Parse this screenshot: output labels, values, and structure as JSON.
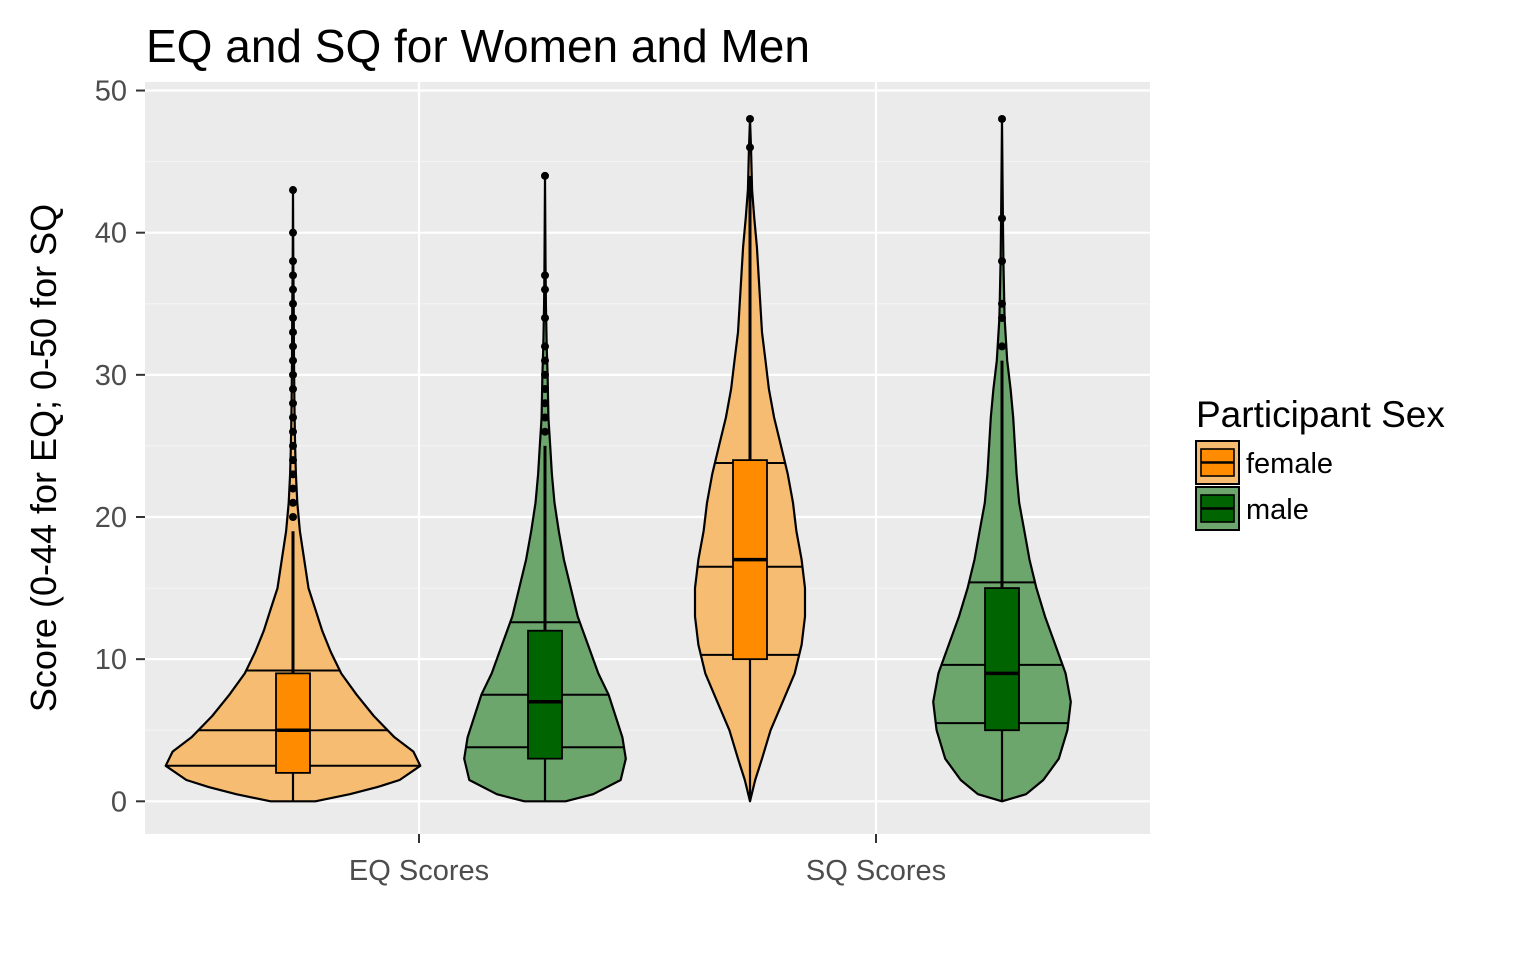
{
  "chart_data": {
    "type": "violin",
    "title": "EQ and SQ for Women and Men",
    "xlabel": "",
    "ylabel": "Score (0-44 for EQ; 0-50 for SQ",
    "ylim": [
      -2.3,
      50.6
    ],
    "yticks": [
      0,
      10,
      20,
      30,
      40,
      50
    ],
    "grid": true,
    "categories": [
      "EQ Scores",
      "SQ Scores"
    ],
    "legend": {
      "title": "Participant Sex",
      "position": "right",
      "items": [
        {
          "label": "female",
          "fill": "#ff8c00"
        },
        {
          "label": "male",
          "fill": "#006400"
        }
      ]
    },
    "series": [
      {
        "name": "female",
        "violin_fill": "#f6bc72",
        "box_fill": "#ff8c00",
        "groups": [
          {
            "category": "EQ Scores",
            "box": {
              "min": 0,
              "q1": 2,
              "median": 5,
              "q3": 9,
              "whisker_high": 19
            },
            "violin_quantiles": [
              2.5,
              5,
              9.2
            ],
            "outliers": [
              20,
              21,
              22,
              23,
              24,
              25,
              26,
              27,
              28,
              29,
              30,
              31,
              32,
              33,
              34,
              35,
              36,
              37,
              38,
              40,
              43
            ],
            "density": [
              [
                0,
                0.13
              ],
              [
                0.5,
                0.33
              ],
              [
                1,
                0.49
              ],
              [
                1.5,
                0.62
              ],
              [
                2.5,
                0.74
              ],
              [
                3.5,
                0.7
              ],
              [
                4.5,
                0.59
              ],
              [
                6,
                0.47
              ],
              [
                7.5,
                0.37
              ],
              [
                9,
                0.28
              ],
              [
                10.5,
                0.22
              ],
              [
                12,
                0.17
              ],
              [
                13.5,
                0.13
              ],
              [
                15,
                0.09
              ],
              [
                17,
                0.065
              ],
              [
                19,
                0.04
              ],
              [
                21,
                0.025
              ],
              [
                23,
                0.017
              ],
              [
                25,
                0.012
              ],
              [
                28,
                0.008
              ],
              [
                31,
                0.006
              ],
              [
                35,
                0.004
              ],
              [
                38,
                0.002
              ],
              [
                43,
                0
              ]
            ]
          },
          {
            "category": "SQ Scores",
            "box": {
              "min": 0,
              "q1": 10,
              "median": 17,
              "q3": 24,
              "whisker_high": 44
            },
            "violin_quantiles": [
              10.3,
              16.5,
              23.8
            ],
            "outliers": [
              46,
              48
            ],
            "density": [
              [
                0,
                0
              ],
              [
                1.5,
                0.03
              ],
              [
                3,
                0.07
              ],
              [
                5,
                0.12
              ],
              [
                7,
                0.19
              ],
              [
                9,
                0.26
              ],
              [
                11,
                0.3
              ],
              [
                13,
                0.32
              ],
              [
                15,
                0.32
              ],
              [
                17,
                0.3
              ],
              [
                19,
                0.27
              ],
              [
                21,
                0.25
              ],
              [
                23,
                0.22
              ],
              [
                25,
                0.18
              ],
              [
                27,
                0.14
              ],
              [
                29,
                0.11
              ],
              [
                31,
                0.09
              ],
              [
                33,
                0.07
              ],
              [
                35,
                0.06
              ],
              [
                37,
                0.05
              ],
              [
                39,
                0.04
              ],
              [
                41,
                0.025
              ],
              [
                43,
                0.012
              ],
              [
                46,
                0.006
              ],
              [
                48,
                0
              ]
            ]
          }
        ]
      },
      {
        "name": "male",
        "violin_fill": "#6ca66c",
        "box_fill": "#006400",
        "groups": [
          {
            "category": "EQ Scores",
            "box": {
              "min": 0,
              "q1": 3,
              "median": 7,
              "q3": 12,
              "whisker_high": 25
            },
            "violin_quantiles": [
              3.8,
              7.5,
              12.6
            ],
            "outliers": [
              26,
              27,
              28,
              29,
              30,
              31,
              32,
              34,
              36,
              37,
              44
            ],
            "density": [
              [
                0,
                0.12
              ],
              [
                0.5,
                0.28
              ],
              [
                1.5,
                0.44
              ],
              [
                3,
                0.47
              ],
              [
                4.5,
                0.45
              ],
              [
                6,
                0.41
              ],
              [
                7.5,
                0.37
              ],
              [
                9,
                0.31
              ],
              [
                11,
                0.25
              ],
              [
                13,
                0.19
              ],
              [
                15,
                0.15
              ],
              [
                17,
                0.11
              ],
              [
                19,
                0.08
              ],
              [
                21,
                0.055
              ],
              [
                23,
                0.04
              ],
              [
                25,
                0.03
              ],
              [
                27,
                0.02
              ],
              [
                30,
                0.015
              ],
              [
                32,
                0.01
              ],
              [
                35,
                0.005
              ],
              [
                38,
                0.003
              ],
              [
                44,
                0
              ]
            ]
          },
          {
            "category": "SQ Scores",
            "box": {
              "min": 0,
              "q1": 5,
              "median": 9,
              "q3": 15,
              "whisker_high": 31
            },
            "violin_quantiles": [
              5.5,
              9.6,
              15.4
            ],
            "outliers": [
              32,
              34,
              35,
              38,
              41,
              48
            ],
            "density": [
              [
                0,
                0
              ],
              [
                0.5,
                0.14
              ],
              [
                1.5,
                0.24
              ],
              [
                3,
                0.33
              ],
              [
                5,
                0.38
              ],
              [
                7,
                0.4
              ],
              [
                9,
                0.37
              ],
              [
                11,
                0.31
              ],
              [
                13,
                0.25
              ],
              [
                15,
                0.2
              ],
              [
                17,
                0.16
              ],
              [
                19,
                0.13
              ],
              [
                21,
                0.1
              ],
              [
                23,
                0.085
              ],
              [
                25,
                0.075
              ],
              [
                27,
                0.065
              ],
              [
                29,
                0.05
              ],
              [
                31,
                0.03
              ],
              [
                34,
                0.015
              ],
              [
                38,
                0.008
              ],
              [
                41,
                0.005
              ],
              [
                44,
                0.003
              ],
              [
                48,
                0
              ]
            ]
          }
        ]
      }
    ]
  }
}
